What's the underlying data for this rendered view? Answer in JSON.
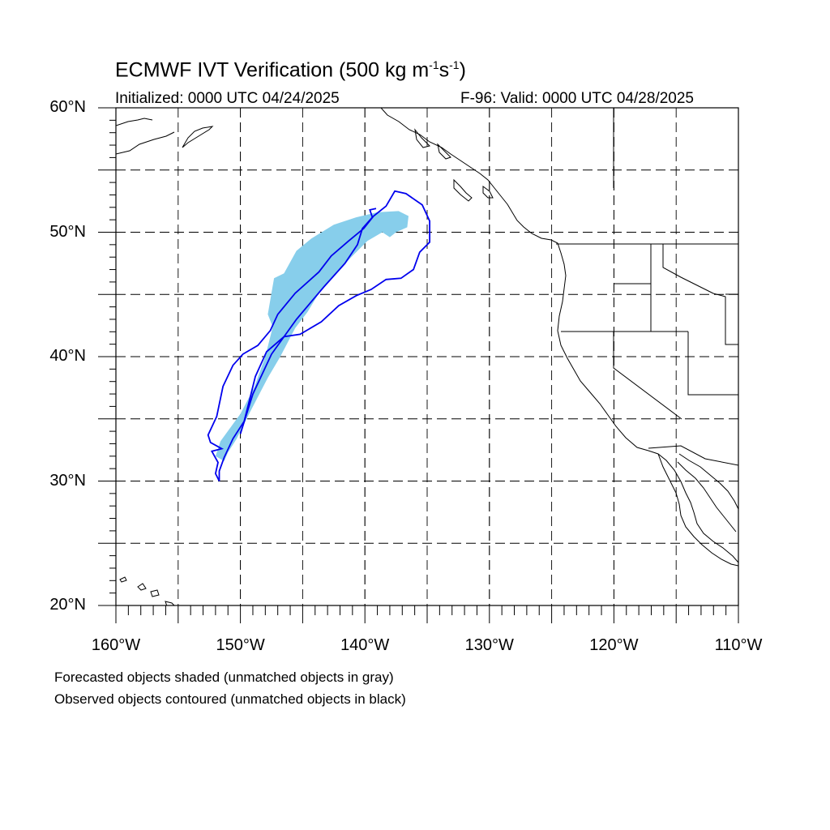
{
  "header": {
    "title_main": "ECMWF IVT Verification (500 kg m",
    "title_exp1": "-1",
    "title_mid": "s",
    "title_exp2": "-1",
    "title_end": ")",
    "initialized": "Initialized: 0000 UTC 04/24/2025",
    "valid": "F-96: Valid: 0000 UTC 04/28/2025"
  },
  "map": {
    "lon_range": [
      -160,
      -110
    ],
    "lat_range": [
      20,
      60
    ],
    "lat_ticks": [
      {
        "value": 60,
        "label": "60°N"
      },
      {
        "value": 50,
        "label": "50°N"
      },
      {
        "value": 40,
        "label": "40°N"
      },
      {
        "value": 30,
        "label": "30°N"
      },
      {
        "value": 20,
        "label": "20°N"
      }
    ],
    "lon_ticks": [
      {
        "value": -160,
        "label": "160°W"
      },
      {
        "value": -150,
        "label": "150°W"
      },
      {
        "value": -140,
        "label": "140°W"
      },
      {
        "value": -130,
        "label": "130°W"
      },
      {
        "value": -120,
        "label": "120°W"
      },
      {
        "value": -110,
        "label": "110°W"
      }
    ],
    "grid_lons": [
      -155,
      -150,
      -145,
      -140,
      -135,
      -130,
      -125,
      -120,
      -115
    ],
    "grid_lats": [
      55,
      50,
      45,
      40,
      35,
      30,
      25
    ],
    "forecast_color": "#87ceeb",
    "observed_color": "#0000ee",
    "forecast_object": [
      [
        -151.3,
        31.6
      ],
      [
        -152.0,
        32.0
      ],
      [
        -151.6,
        33.2
      ],
      [
        -150.0,
        35.4
      ],
      [
        -148.9,
        37.5
      ],
      [
        -148.0,
        40.0
      ],
      [
        -147.4,
        42.4
      ],
      [
        -147.8,
        43.4
      ],
      [
        -147.3,
        46.3
      ],
      [
        -146.5,
        46.7
      ],
      [
        -145.5,
        48.5
      ],
      [
        -144.3,
        49.5
      ],
      [
        -142.5,
        50.6
      ],
      [
        -140.7,
        51.2
      ],
      [
        -139.0,
        51.6
      ],
      [
        -137.3,
        51.7
      ],
      [
        -136.5,
        51.3
      ],
      [
        -136.6,
        50.4
      ],
      [
        -137.5,
        50.0
      ],
      [
        -138.0,
        49.6
      ],
      [
        -138.6,
        50.0
      ],
      [
        -139.8,
        49.3
      ],
      [
        -141.0,
        48.1
      ],
      [
        -142.5,
        46.5
      ],
      [
        -143.7,
        45.1
      ],
      [
        -144.6,
        43.6
      ],
      [
        -145.6,
        42.3
      ],
      [
        -146.8,
        40.0
      ],
      [
        -147.8,
        38.3
      ],
      [
        -149.2,
        35.6
      ],
      [
        -150.3,
        33.4
      ],
      [
        -151.0,
        32.3
      ]
    ],
    "observed_object": [
      [
        -151.7,
        30.0
      ],
      [
        -152.0,
        30.6
      ],
      [
        -151.8,
        31.5
      ],
      [
        -152.3,
        32.4
      ],
      [
        -151.5,
        32.6
      ],
      [
        -152.4,
        33.1
      ],
      [
        -152.6,
        33.7
      ],
      [
        -151.9,
        35.2
      ],
      [
        -151.4,
        37.6
      ],
      [
        -150.6,
        39.3
      ],
      [
        -149.8,
        40.2
      ],
      [
        -148.6,
        40.9
      ],
      [
        -147.6,
        42.1
      ],
      [
        -147.0,
        43.4
      ],
      [
        -145.6,
        45.1
      ],
      [
        -143.7,
        46.8
      ],
      [
        -142.7,
        48.1
      ],
      [
        -141.3,
        49.3
      ],
      [
        -140.1,
        50.3
      ],
      [
        -139.3,
        51.3
      ],
      [
        -138.3,
        52.1
      ],
      [
        -137.6,
        53.3
      ],
      [
        -136.7,
        53.1
      ],
      [
        -135.4,
        52.2
      ],
      [
        -134.8,
        50.9
      ],
      [
        -134.8,
        49.2
      ],
      [
        -135.6,
        48.4
      ],
      [
        -136.1,
        47.0
      ],
      [
        -137.1,
        46.3
      ],
      [
        -138.3,
        46.2
      ],
      [
        -139.5,
        45.4
      ],
      [
        -140.7,
        44.9
      ],
      [
        -142.1,
        44.1
      ],
      [
        -143.5,
        42.8
      ],
      [
        -145.2,
        41.8
      ],
      [
        -146.5,
        41.6
      ],
      [
        -147.9,
        40.4
      ],
      [
        -148.8,
        38.4
      ],
      [
        -149.3,
        36.4
      ],
      [
        -149.7,
        34.8
      ],
      [
        -150.6,
        33.4
      ],
      [
        -151.3,
        31.9
      ],
      [
        -151.7,
        30.8
      ]
    ],
    "observed_inner_ridge": [
      [
        -150.0,
        33.8
      ],
      [
        -149.0,
        37.0
      ],
      [
        -147.5,
        40.2
      ],
      [
        -145.5,
        43.0
      ],
      [
        -143.3,
        45.6
      ],
      [
        -141.6,
        47.5
      ],
      [
        -140.6,
        49.0
      ],
      [
        -140.2,
        50.3
      ],
      [
        -139.4,
        51.2
      ],
      [
        -139.6,
        51.8
      ],
      [
        -139.1,
        51.9
      ]
    ]
  },
  "caption": {
    "line1": "Forecasted objects shaded (unmatched objects in gray)",
    "line2": "Observed objects contoured (unmatched objects in black)"
  }
}
